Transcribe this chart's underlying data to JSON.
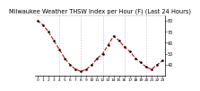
{
  "title": "Milwaukee Weather THSW Index per Hour (F) (Last 24 Hours)",
  "title_fontsize": 4.8,
  "title_color": "#000000",
  "background_color": "#ffffff",
  "plot_bg_color": "#ffffff",
  "grid_color": "#aaaaaa",
  "line_color": "#cc0000",
  "marker_color": "#000000",
  "hours": [
    0,
    1,
    2,
    3,
    4,
    5,
    6,
    7,
    8,
    9,
    10,
    11,
    12,
    13,
    14,
    15,
    16,
    17,
    18,
    19,
    20,
    21,
    22,
    23
  ],
  "values": [
    80,
    76,
    70,
    62,
    54,
    46,
    40,
    36,
    34,
    36,
    40,
    46,
    50,
    58,
    66,
    62,
    56,
    52,
    46,
    42,
    38,
    36,
    40,
    44
  ],
  "ylim": [
    30,
    85
  ],
  "yticks_right": [
    40,
    50,
    60,
    70,
    80
  ],
  "ytick_labels_right": [
    "40",
    "50",
    "60",
    "70",
    "80"
  ],
  "ylabel_fontsize": 3.5,
  "xlabel_fontsize": 3.2,
  "xtick_labels": [
    "0",
    "1",
    "2",
    "3",
    "4",
    "5",
    "6",
    "7",
    "8",
    "9",
    "10",
    "11",
    "12",
    "13",
    "14",
    "15",
    "16",
    "17",
    "18",
    "19",
    "20",
    "21",
    "22",
    "23"
  ],
  "vgrid_positions": [
    4,
    8,
    12,
    16,
    20
  ],
  "line_width": 0.8,
  "marker_size": 1.5
}
